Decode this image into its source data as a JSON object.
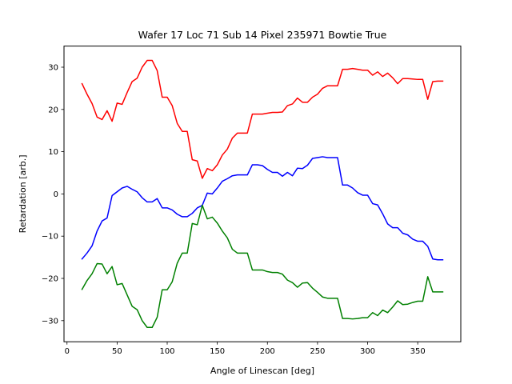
{
  "chart_data": {
    "type": "line",
    "title": "Wafer 17 Loc 71 Sub 14 Pixel 235971 Bowtie True",
    "xlabel": "Angle of Linescan [deg]",
    "ylabel": "Retardation [arb.]",
    "xlim": [
      -3,
      393
    ],
    "ylim": [
      -35,
      35
    ],
    "xticks": [
      0,
      50,
      100,
      150,
      200,
      250,
      300,
      350
    ],
    "yticks": [
      -30,
      -20,
      -10,
      0,
      10,
      20,
      30
    ],
    "grid": false,
    "x": [
      15,
      20,
      25,
      30,
      35,
      40,
      45,
      50,
      55,
      60,
      65,
      70,
      75,
      80,
      85,
      90,
      95,
      100,
      105,
      110,
      115,
      120,
      125,
      130,
      135,
      140,
      145,
      150,
      155,
      160,
      165,
      170,
      175,
      180,
      185,
      190,
      195,
      200,
      205,
      210,
      215,
      220,
      225,
      230,
      235,
      240,
      245,
      250,
      255,
      260,
      265,
      270,
      275,
      280,
      285,
      290,
      295,
      300,
      305,
      310,
      315,
      320,
      325,
      330,
      335,
      340,
      345,
      350,
      355,
      360,
      365,
      370,
      375
    ],
    "series": [
      {
        "color": "#ff0000",
        "values": [
          26.1,
          23.6,
          21.4,
          18.2,
          17.6,
          19.7,
          17.2,
          21.5,
          21.2,
          24.0,
          26.6,
          27.4,
          30.0,
          31.6,
          31.6,
          29.2,
          22.9,
          22.9,
          20.9,
          16.7,
          14.8,
          14.8,
          8.1,
          7.8,
          3.7,
          6.0,
          5.5,
          6.9,
          9.2,
          10.6,
          13.2,
          14.4,
          14.4,
          14.4,
          18.9,
          18.9,
          18.9,
          19.1,
          19.3,
          19.3,
          19.4,
          20.9,
          21.3,
          22.7,
          21.7,
          21.7,
          22.9,
          23.6,
          25.0,
          25.6,
          25.6,
          25.6,
          29.5,
          29.5,
          29.7,
          29.5,
          29.3,
          29.3,
          28.1,
          28.9,
          27.8,
          28.6,
          27.5,
          26.1,
          27.3,
          27.3,
          27.2,
          27.1,
          27.1,
          22.4,
          26.6,
          26.7,
          26.7
        ]
      },
      {
        "color": "#0000ff",
        "values": [
          -15.4,
          -14.0,
          -12.3,
          -8.8,
          -6.4,
          -5.7,
          -0.4,
          0.5,
          1.4,
          1.8,
          1.1,
          0.5,
          -0.9,
          -1.9,
          -1.9,
          -1.1,
          -3.3,
          -3.3,
          -3.8,
          -4.8,
          -5.4,
          -5.4,
          -4.6,
          -3.3,
          -2.7,
          0.2,
          0.0,
          1.4,
          3.0,
          3.6,
          4.3,
          4.5,
          4.5,
          4.5,
          6.9,
          6.9,
          6.7,
          5.8,
          5.1,
          5.1,
          4.2,
          5.1,
          4.3,
          6.1,
          6.0,
          6.8,
          8.4,
          8.6,
          8.8,
          8.6,
          8.6,
          8.6,
          2.1,
          2.1,
          1.4,
          0.3,
          -0.3,
          -0.3,
          -2.3,
          -2.6,
          -4.7,
          -7.1,
          -8.0,
          -8.0,
          -9.3,
          -9.7,
          -10.7,
          -11.2,
          -11.2,
          -12.4,
          -15.4,
          -15.6,
          -15.6
        ]
      },
      {
        "color": "#008000",
        "values": [
          -22.6,
          -20.5,
          -18.9,
          -16.5,
          -16.6,
          -18.9,
          -17.2,
          -21.5,
          -21.2,
          -23.9,
          -26.6,
          -27.4,
          -30.0,
          -31.6,
          -31.6,
          -29.2,
          -22.7,
          -22.7,
          -20.8,
          -16.4,
          -14.0,
          -14.0,
          -7.0,
          -7.3,
          -2.7,
          -5.9,
          -5.5,
          -6.9,
          -8.8,
          -10.4,
          -13.1,
          -14.0,
          -14.0,
          -14.0,
          -18.0,
          -18.0,
          -18.0,
          -18.4,
          -18.6,
          -18.6,
          -19.0,
          -20.4,
          -21.0,
          -22.1,
          -21.1,
          -21.0,
          -22.3,
          -23.3,
          -24.4,
          -24.7,
          -24.7,
          -24.7,
          -29.5,
          -29.5,
          -29.6,
          -29.5,
          -29.3,
          -29.3,
          -28.1,
          -28.8,
          -27.5,
          -28.1,
          -26.8,
          -25.3,
          -26.2,
          -26.1,
          -25.7,
          -25.4,
          -25.4,
          -19.6,
          -23.2,
          -23.2,
          -23.2
        ]
      }
    ]
  }
}
